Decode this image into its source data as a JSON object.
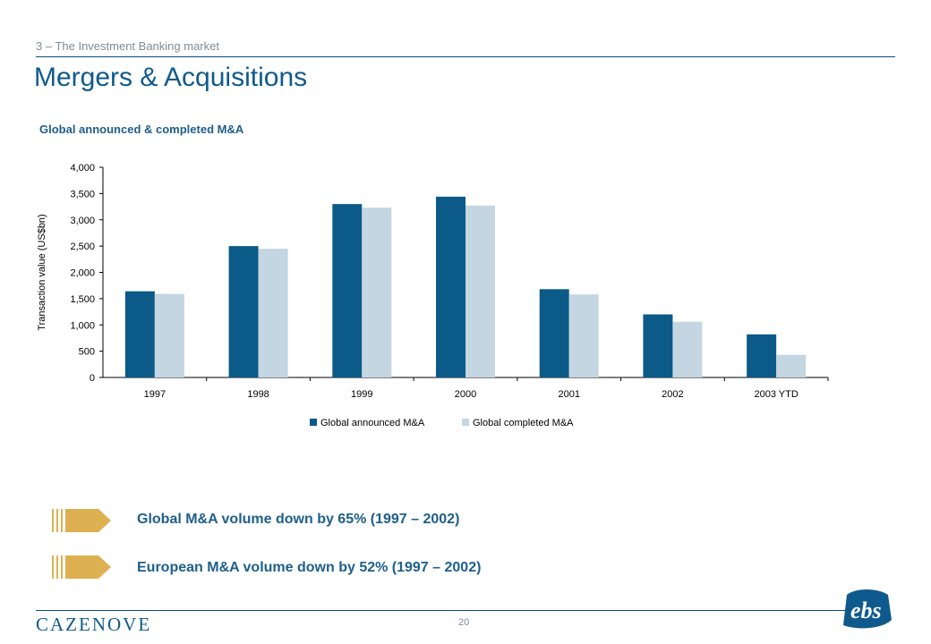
{
  "header": {
    "section": "3 – The Investment Banking market",
    "title": "Mergers & Acquisitions"
  },
  "chart_heading": "Global announced & completed M&A",
  "chart_data": {
    "type": "bar",
    "categories": [
      "1997",
      "1998",
      "1999",
      "2000",
      "2001",
      "2002",
      "2003 YTD"
    ],
    "series": [
      {
        "name": "Global announced M&A",
        "values": [
          1640,
          2500,
          3300,
          3440,
          1680,
          1200,
          820
        ],
        "color": "#0b5a87"
      },
      {
        "name": "Global completed M&A",
        "values": [
          1590,
          2450,
          3230,
          3270,
          1580,
          1060,
          430
        ],
        "color": "#c3d6e1"
      }
    ],
    "ylabel": "Transaction value (US$bn)",
    "xlabel": "",
    "ylim": [
      0,
      4000
    ],
    "yticks": [
      0,
      500,
      1000,
      1500,
      2000,
      2500,
      3000,
      3500,
      4000
    ],
    "ytick_labels": [
      "0",
      "500",
      "1,000",
      "1,500",
      "2,000",
      "2,500",
      "3,000",
      "3,500",
      "4,000"
    ],
    "legend_position": "bottom",
    "grid": false
  },
  "bullets": [
    {
      "text": "Global M&A volume down by 65% (1997 – 2002)"
    },
    {
      "text": "European M&A volume down by 52% (1997 – 2002)"
    }
  ],
  "footer": {
    "brand": "CAZENOVE",
    "page_number": "20",
    "logo_text": "ebs"
  },
  "colors": {
    "bullet_gold": "#ddb152",
    "rule_blue": "#0c4f7c",
    "title_blue": "#0f5a8c"
  }
}
